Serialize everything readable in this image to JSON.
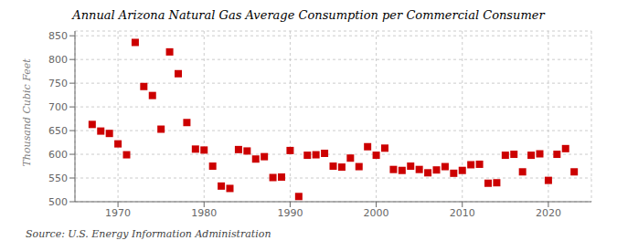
{
  "chart_data": {
    "type": "scatter",
    "title": "Annual Arizona Natural Gas Average Consumption per Commercial Consumer",
    "y_label": "Thousand Cubic Feet",
    "annotations": [
      "Source: U.S. Energy Information Administration"
    ],
    "color": "#cc0000",
    "marker": "square",
    "grid": true,
    "xlim": [
      1965,
      2025
    ],
    "ylim": [
      500,
      860
    ],
    "xticks": [
      1970,
      1980,
      1990,
      2000,
      2010,
      2020
    ],
    "yticks": [
      500,
      550,
      600,
      650,
      700,
      750,
      800,
      850
    ],
    "x": [
      1967,
      1968,
      1969,
      1970,
      1971,
      1972,
      1973,
      1974,
      1975,
      1976,
      1977,
      1978,
      1979,
      1980,
      1981,
      1982,
      1983,
      1984,
      1985,
      1986,
      1987,
      1988,
      1989,
      1990,
      1991,
      1992,
      1993,
      1994,
      1995,
      1996,
      1997,
      1998,
      1999,
      2000,
      2001,
      2002,
      2003,
      2004,
      2005,
      2006,
      2007,
      2008,
      2009,
      2010,
      2011,
      2012,
      2013,
      2014,
      2015,
      2016,
      2017,
      2018,
      2019,
      2020,
      2021,
      2022,
      2023
    ],
    "values": [
      663,
      649,
      644,
      622,
      599,
      836,
      743,
      724,
      653,
      816,
      770,
      667,
      611,
      609,
      575,
      533,
      528,
      610,
      607,
      590,
      595,
      551,
      552,
      608,
      511,
      598,
      599,
      602,
      575,
      573,
      592,
      574,
      616,
      598,
      613,
      568,
      566,
      575,
      568,
      561,
      567,
      574,
      560,
      566,
      578,
      579,
      539,
      540,
      598,
      600,
      563,
      598,
      601,
      545,
      600,
      612,
      563
    ]
  }
}
